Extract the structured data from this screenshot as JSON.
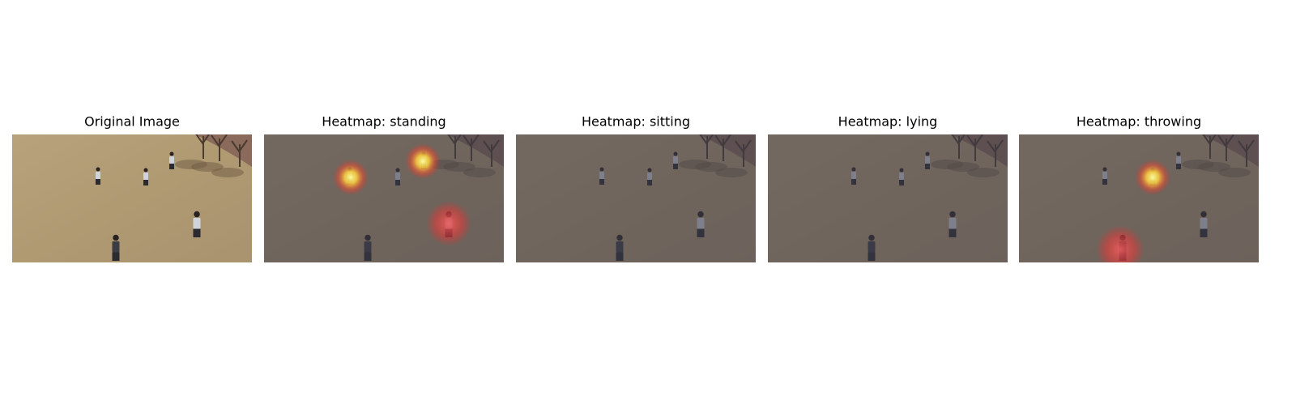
{
  "panels": [
    {
      "title": "Original Image"
    },
    {
      "title": "Heatmap: standing"
    },
    {
      "title": "Heatmap: sitting"
    },
    {
      "title": "Heatmap: lying"
    },
    {
      "title": "Heatmap: throwing"
    }
  ]
}
